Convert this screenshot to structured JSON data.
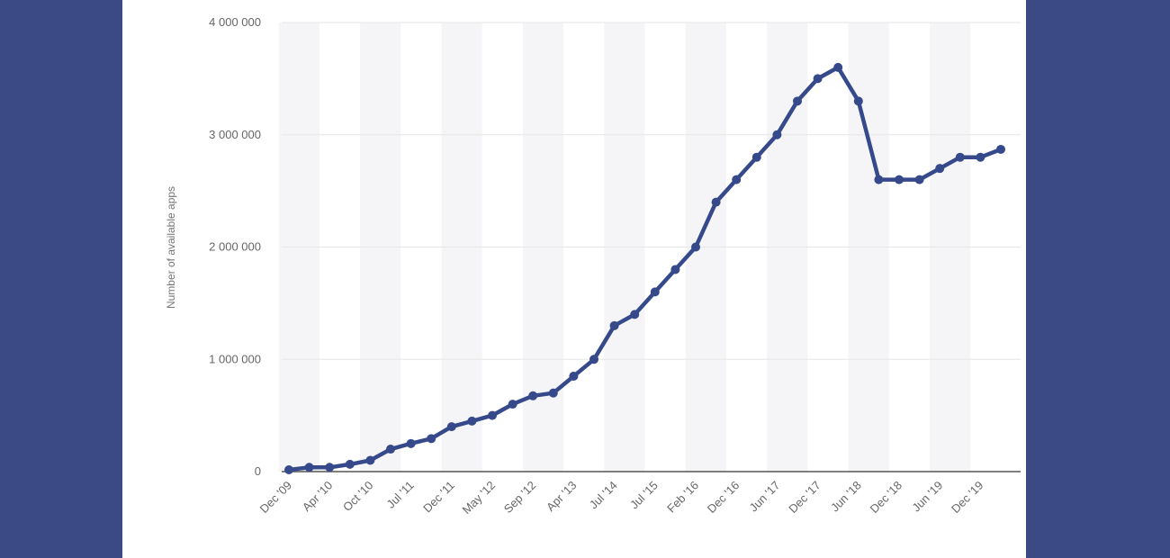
{
  "chart_data": {
    "type": "line",
    "title": "",
    "xlabel": "",
    "ylabel": "Number of available apps",
    "ylim": [
      0,
      4000000
    ],
    "y_ticks": [
      0,
      1000000,
      2000000,
      3000000,
      4000000
    ],
    "y_tick_labels": [
      "0",
      "1 000 000",
      "2 000 000",
      "3 000 000",
      "4 000 000"
    ],
    "grid": true,
    "legend": "none",
    "line_color": "#364a8b",
    "x_tick_labels": [
      {
        "i": 0,
        "label": "Dec '09"
      },
      {
        "i": 2,
        "label": "Apr '10"
      },
      {
        "i": 4,
        "label": "Oct '10"
      },
      {
        "i": 6,
        "label": "Jul '11"
      },
      {
        "i": 8,
        "label": "Dec '11"
      },
      {
        "i": 10,
        "label": "May '12"
      },
      {
        "i": 12,
        "label": "Sep '12"
      },
      {
        "i": 14,
        "label": "Apr '13"
      },
      {
        "i": 16,
        "label": "Jul '14"
      },
      {
        "i": 18,
        "label": "Jul '15"
      },
      {
        "i": 20,
        "label": "Feb '16"
      },
      {
        "i": 22,
        "label": "Dec '16"
      },
      {
        "i": 24,
        "label": "Jun '17"
      },
      {
        "i": 26,
        "label": "Dec '17"
      },
      {
        "i": 28,
        "label": "Jun '18"
      },
      {
        "i": 30,
        "label": "Dec '18"
      },
      {
        "i": 32,
        "label": "Jun '19"
      },
      {
        "i": 34,
        "label": "Dec '19"
      }
    ],
    "series": [
      {
        "values": [
          16000,
          38000,
          38000,
          65000,
          100000,
          200000,
          250000,
          294000,
          400000,
          450000,
          500000,
          600000,
          675000,
          700000,
          850000,
          1000000,
          1300000,
          1400000,
          1600000,
          1800000,
          2000000,
          2400000,
          2600000,
          2800000,
          3000000,
          3300000,
          3500000,
          3600000,
          3300000,
          2600000,
          2600000,
          2600000,
          2700000,
          2800000,
          2800000,
          2870000
        ]
      }
    ]
  }
}
